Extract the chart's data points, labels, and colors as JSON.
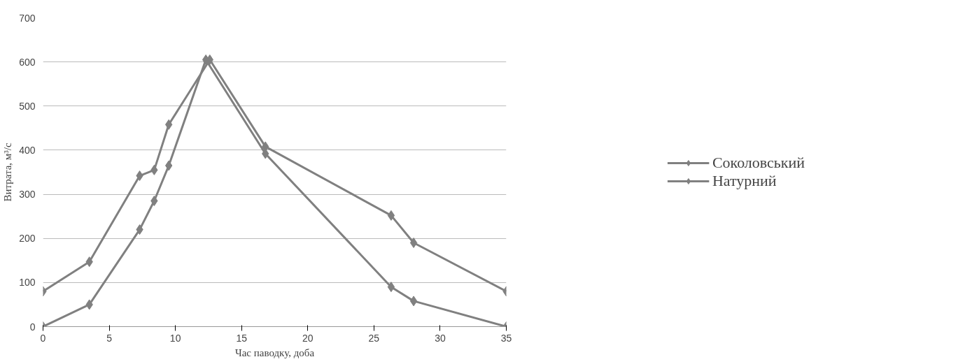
{
  "chart_data": {
    "type": "line",
    "xlabel": "Час паводку, доба",
    "ylabel": "Витрата, м³/с",
    "xlim": [
      0,
      35
    ],
    "xticks": [
      0,
      5,
      10,
      15,
      20,
      25,
      30,
      35
    ],
    "ylim": [
      0,
      700
    ],
    "yticks": [
      0,
      100,
      200,
      300,
      400,
      500,
      600,
      700
    ],
    "grid": "y",
    "legend": "right",
    "marker": "diamond",
    "line_style": "solid",
    "series": [
      {
        "name": "Соколовський",
        "color": "#808080",
        "x": [
          0,
          3.5,
          7.3,
          8.4,
          9.5,
          12.6,
          16.8,
          26.3,
          28,
          35
        ],
        "values": [
          80,
          147,
          342,
          355,
          458,
          605,
          408,
          252,
          190,
          80
        ]
      },
      {
        "name": "Натурний",
        "color": "#808080",
        "x": [
          0,
          3.5,
          7.3,
          8.4,
          9.5,
          12.3,
          16.8,
          26.3,
          28,
          35
        ],
        "values": [
          0,
          50,
          220,
          285,
          365,
          605,
          392,
          90,
          58,
          0
        ]
      }
    ]
  }
}
